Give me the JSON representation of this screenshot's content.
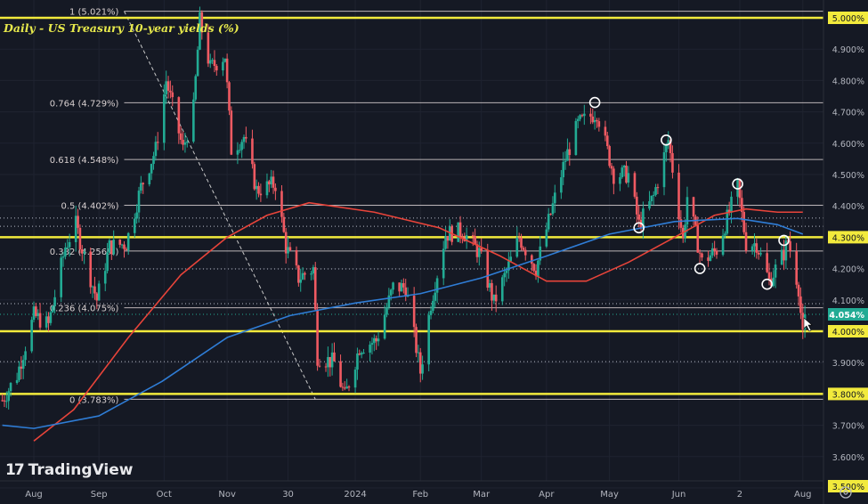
{
  "title": "Daily - US Treasury 10-year yields (%)",
  "brand": "TradingView",
  "colors": {
    "background": "#151924",
    "up": "#22ab94",
    "down": "#f05a62",
    "ma_fast": "#e8443a",
    "ma_slow": "#2f7dd6",
    "support_resistance": "#f2ea3c",
    "fib": "#d8d0d0",
    "current_price": "#22ab94"
  },
  "chart_data": {
    "type": "candlestick",
    "title": "Daily - US Treasury 10-year yields (%)",
    "ylim": [
      3.5,
      5.0
    ],
    "y_unit": "%",
    "grid": true,
    "y_ticks": [
      "5.000%",
      "4.900%",
      "4.800%",
      "4.700%",
      "4.600%",
      "4.500%",
      "4.400%",
      "4.300%",
      "4.200%",
      "4.100%",
      "4.000%",
      "3.900%",
      "3.800%",
      "3.700%",
      "3.600%",
      "3.500%"
    ],
    "highlighted_y_ticks": [
      "5.000%",
      "4.300%",
      "4.000%",
      "3.800%",
      "3.500%"
    ],
    "x_ticks": [
      {
        "label": "Aug",
        "date": "2023-08-01"
      },
      {
        "label": "Sep",
        "date": "2023-09-01"
      },
      {
        "label": "Oct",
        "date": "2023-10-02"
      },
      {
        "label": "Nov",
        "date": "2023-11-01"
      },
      {
        "label": "30",
        "date": "2023-11-30"
      },
      {
        "label": "2024",
        "date": "2024-01-01"
      },
      {
        "label": "Feb",
        "date": "2024-02-01"
      },
      {
        "label": "Mar",
        "date": "2024-03-01"
      },
      {
        "label": "Apr",
        "date": "2024-04-01"
      },
      {
        "label": "May",
        "date": "2024-05-01"
      },
      {
        "label": "Jun",
        "date": "2024-06-03"
      },
      {
        "label": "2",
        "date": "2024-07-02"
      },
      {
        "label": "Aug",
        "date": "2024-08-01"
      }
    ],
    "close_path": [
      [
        "2023-07-17",
        3.78
      ],
      [
        "2023-07-24",
        3.86
      ],
      [
        "2023-08-01",
        4.05
      ],
      [
        "2023-08-08",
        4.02
      ],
      [
        "2023-08-16",
        4.27
      ],
      [
        "2023-08-21",
        4.34
      ],
      [
        "2023-08-25",
        4.24
      ],
      [
        "2023-08-31",
        4.1
      ],
      [
        "2023-09-06",
        4.27
      ],
      [
        "2023-09-14",
        4.28
      ],
      [
        "2023-09-21",
        4.46
      ],
      [
        "2023-09-28",
        4.58
      ],
      [
        "2023-10-03",
        4.8
      ],
      [
        "2023-10-11",
        4.58
      ],
      [
        "2023-10-16",
        4.71
      ],
      [
        "2023-10-19",
        4.99
      ],
      [
        "2023-10-24",
        4.84
      ],
      [
        "2023-10-31",
        4.88
      ],
      [
        "2023-11-03",
        4.58
      ],
      [
        "2023-11-09",
        4.62
      ],
      [
        "2023-11-15",
        4.45
      ],
      [
        "2023-11-24",
        4.47
      ],
      [
        "2023-11-29",
        4.27
      ],
      [
        "2023-12-05",
        4.17
      ],
      [
        "2023-12-12",
        4.2
      ],
      [
        "2023-12-14",
        3.92
      ],
      [
        "2023-12-22",
        3.9
      ],
      [
        "2023-12-27",
        3.79
      ],
      [
        "2024-01-03",
        3.95
      ],
      [
        "2024-01-11",
        3.97
      ],
      [
        "2024-01-19",
        4.14
      ],
      [
        "2024-01-25",
        4.14
      ],
      [
        "2024-02-01",
        3.87
      ],
      [
        "2024-02-06",
        4.09
      ],
      [
        "2024-02-13",
        4.31
      ],
      [
        "2024-02-21",
        4.32
      ],
      [
        "2024-02-29",
        4.25
      ],
      [
        "2024-03-07",
        4.09
      ],
      [
        "2024-03-13",
        4.19
      ],
      [
        "2024-03-19",
        4.3
      ],
      [
        "2024-03-27",
        4.2
      ],
      [
        "2024-04-02",
        4.35
      ],
      [
        "2024-04-10",
        4.55
      ],
      [
        "2024-04-16",
        4.66
      ],
      [
        "2024-04-25",
        4.7
      ],
      [
        "2024-05-03",
        4.5
      ],
      [
        "2024-05-10",
        4.5
      ],
      [
        "2024-05-15",
        4.34
      ],
      [
        "2024-05-22",
        4.43
      ],
      [
        "2024-05-29",
        4.61
      ],
      [
        "2024-06-05",
        4.29
      ],
      [
        "2024-06-07",
        4.43
      ],
      [
        "2024-06-14",
        4.22
      ],
      [
        "2024-06-21",
        4.26
      ],
      [
        "2024-06-28",
        4.4
      ],
      [
        "2024-07-01",
        4.46
      ],
      [
        "2024-07-05",
        4.28
      ],
      [
        "2024-07-10",
        4.28
      ],
      [
        "2024-07-16",
        4.16
      ],
      [
        "2024-07-23",
        4.25
      ],
      [
        "2024-07-25",
        4.29
      ],
      [
        "2024-07-30",
        4.14
      ],
      [
        "2024-08-01",
        3.98
      ],
      [
        "2024-08-02",
        4.054
      ]
    ],
    "last_price": "4.054%",
    "moving_averages": [
      {
        "color": "#e8443a",
        "points": [
          [
            "2023-08-01",
            3.65
          ],
          [
            "2023-08-20",
            3.75
          ],
          [
            "2023-09-15",
            3.98
          ],
          [
            "2023-10-10",
            4.18
          ],
          [
            "2023-11-01",
            4.3
          ],
          [
            "2023-11-20",
            4.37
          ],
          [
            "2023-12-10",
            4.41
          ],
          [
            "2024-01-10",
            4.38
          ],
          [
            "2024-02-10",
            4.33
          ],
          [
            "2024-03-10",
            4.24
          ],
          [
            "2024-04-01",
            4.16
          ],
          [
            "2024-04-20",
            4.16
          ],
          [
            "2024-05-10",
            4.22
          ],
          [
            "2024-06-01",
            4.3
          ],
          [
            "2024-06-20",
            4.37
          ],
          [
            "2024-07-05",
            4.39
          ],
          [
            "2024-07-20",
            4.38
          ],
          [
            "2024-08-01",
            4.38
          ]
        ]
      },
      {
        "color": "#2f7dd6",
        "points": [
          [
            "2023-07-17",
            3.7
          ],
          [
            "2023-08-01",
            3.69
          ],
          [
            "2023-09-01",
            3.73
          ],
          [
            "2023-10-01",
            3.84
          ],
          [
            "2023-11-01",
            3.98
          ],
          [
            "2023-12-01",
            4.05
          ],
          [
            "2024-01-01",
            4.09
          ],
          [
            "2024-02-01",
            4.12
          ],
          [
            "2024-03-01",
            4.17
          ],
          [
            "2024-04-01",
            4.24
          ],
          [
            "2024-05-01",
            4.31
          ],
          [
            "2024-06-01",
            4.35
          ],
          [
            "2024-07-01",
            4.36
          ],
          [
            "2024-07-20",
            4.34
          ],
          [
            "2024-08-01",
            4.31
          ]
        ]
      }
    ],
    "fibonacci": {
      "anchor_start": [
        "2023-09-13",
        5.021
      ],
      "anchor_end": [
        "2023-12-13",
        3.783
      ],
      "levels": [
        {
          "label": "1 (5.021%)",
          "value": 5.021
        },
        {
          "label": "0.764 (4.729%)",
          "value": 4.729
        },
        {
          "label": "0.618 (4.548%)",
          "value": 4.548
        },
        {
          "label": "0.5 (4.402%)",
          "value": 4.402
        },
        {
          "label": "0.382 (4.256%)",
          "value": 4.256
        },
        {
          "label": "0.236 (4.075%)",
          "value": 4.075
        },
        {
          "label": "0 (3.783%)",
          "value": 3.783
        }
      ]
    },
    "horizontal_lines": [
      5.0,
      4.3,
      4.0,
      3.8
    ],
    "dotted_lines": [
      4.361,
      4.335,
      4.199,
      4.088,
      3.903,
      4.054
    ],
    "circle_markers": [
      [
        "2024-04-24",
        4.73
      ],
      [
        "2024-05-28",
        4.61
      ],
      [
        "2024-05-15",
        4.33
      ],
      [
        "2024-07-01",
        4.47
      ],
      [
        "2024-06-13",
        4.2
      ],
      [
        "2024-07-15",
        4.15
      ],
      [
        "2024-07-23",
        4.29
      ]
    ]
  }
}
